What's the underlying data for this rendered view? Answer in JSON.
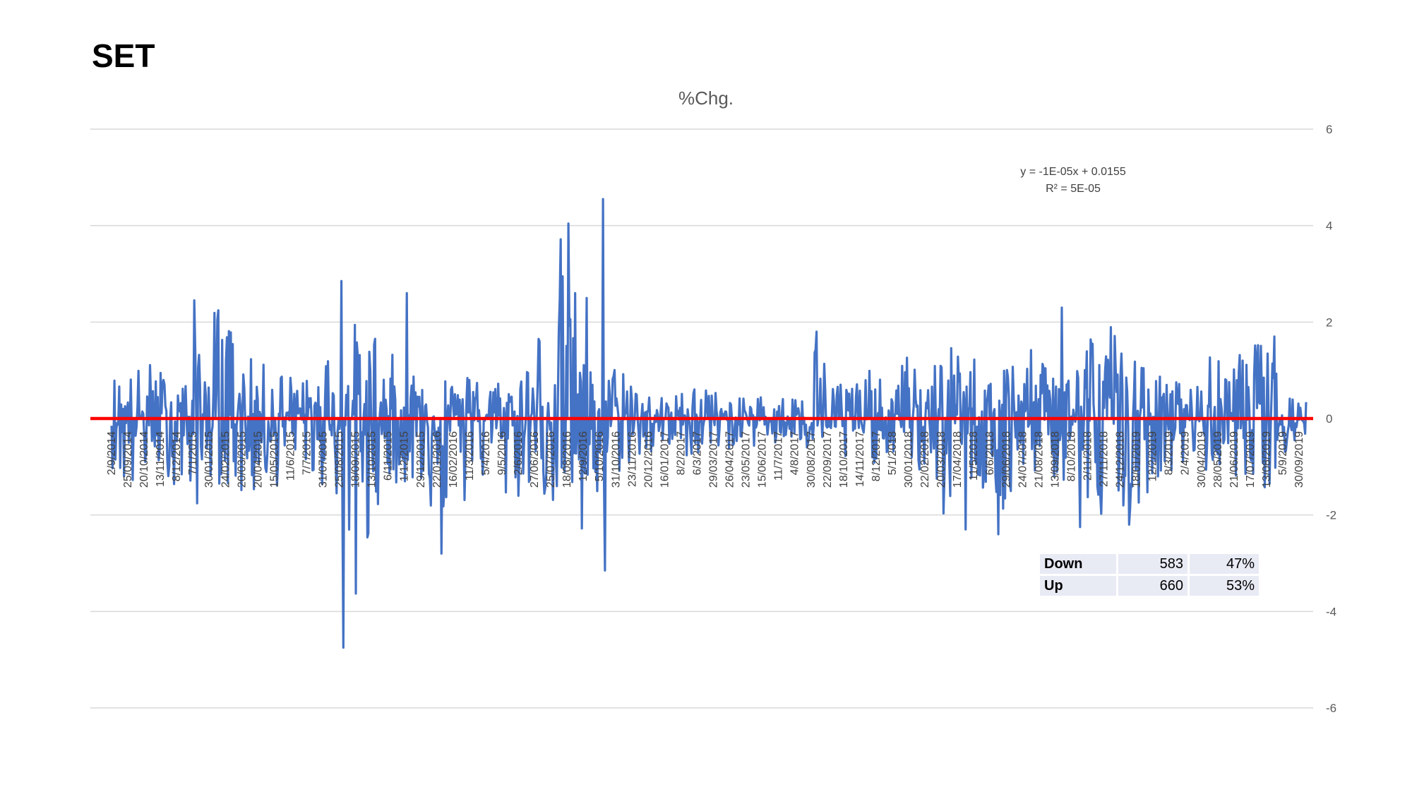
{
  "page": {
    "title": "SET"
  },
  "chart_data": {
    "type": "line",
    "title": "%Chg.",
    "ylim": [
      -6,
      6
    ],
    "yticks": [
      6,
      4,
      2,
      0,
      -2,
      -4,
      -6
    ],
    "y_axis_side": "right",
    "grid": true,
    "x_labels": [
      "2/9/2014",
      "25/09/2014",
      "20/10/2014",
      "13/11/2014",
      "8/12/2014",
      "7/1/2015",
      "30/01/2015",
      "24/02/2015",
      "20/03/2015",
      "20/04/2015",
      "15/05/2015",
      "11/6/2015",
      "7/7/2015",
      "31/07/2015",
      "25/08/2015",
      "18/09/2015",
      "13/10/2015",
      "6/11/2015",
      "1/12/2015",
      "29/12/2015",
      "22/01/2016",
      "16/02/2016",
      "11/3/2016",
      "5/4/2016",
      "9/5/2016",
      "2/6/2016",
      "27/06/2016",
      "25/07/2016",
      "18/08/2016",
      "12/9/2016",
      "5/10/2016",
      "31/10/2016",
      "23/11/2016",
      "20/12/2016",
      "16/01/2017",
      "8/2/2017",
      "6/3/2017",
      "29/03/2017",
      "26/04/2017",
      "23/05/2017",
      "15/06/2017",
      "11/7/2017",
      "4/8/2017",
      "30/08/2017",
      "22/09/2017",
      "18/10/2017",
      "14/11/2017",
      "8/12/2017",
      "5/1/2018",
      "30/01/2018",
      "22/02/2018",
      "20/03/2018",
      "17/04/2018",
      "11/5/2018",
      "6/6/2018",
      "29/06/2018",
      "24/07/2018",
      "21/08/2018",
      "13/09/2018",
      "8/10/2018",
      "2/11/2018",
      "27/11/2018",
      "24/12/2018",
      "18/01/2019",
      "12/2/2019",
      "8/3/2019",
      "2/4/2019",
      "30/04/2019",
      "28/05/2019",
      "21/06/2019",
      "17/07/2019",
      "13/08/2019",
      "5/9/2019",
      "30/09/2019"
    ],
    "series": [
      {
        "color": "#4472c4",
        "points_count": 1243,
        "profile": [
          0.95,
          1.0,
          1.2,
          0.95,
          0.8,
          2.45,
          2.4,
          1.3,
          1.15,
          1.1,
          0.8,
          0.9,
          2.6,
          1.9,
          1.95,
          1.2,
          1.3,
          1.05,
          0.85,
          1.0,
          0.9,
          0.8,
          1.5,
          2.5,
          4.55,
          1.1,
          0.9,
          1.35,
          0.6,
          0.45,
          0.55,
          1.05,
          0.5,
          0.4,
          0.55,
          0.45,
          0.5,
          1.8,
          0.95,
          0.8,
          1.05,
          0.6,
          1.4,
          1.0,
          1.45,
          1.6,
          1.1,
          1.2,
          1.45,
          1.4,
          1.1,
          2.3,
          1.9,
          1.9,
          1.2,
          1.0,
          0.8,
          0.8,
          1.35,
          1.1,
          1.7,
          1.4,
          0.5,
          0.5
        ],
        "profile_neg": [
          -1.0,
          -1.75,
          -1.0,
          -1.2,
          -2.4,
          -1.3,
          -1.4,
          -1.8,
          -1.5,
          -1.4,
          -1.2,
          -1.4,
          -1.8,
          -4.75,
          -1.8,
          -1.4,
          -1.4,
          -2.0,
          -2.8,
          -1.3,
          -1.5,
          -1.9,
          -1.5,
          -1.7,
          -2.3,
          -3.15,
          -1.7,
          -1.0,
          -0.9,
          -0.7,
          -0.8,
          -0.8,
          -0.7,
          -0.6,
          -0.6,
          -0.6,
          -0.5,
          -0.8,
          -0.9,
          -1.0,
          -1.0,
          -0.7,
          -1.0,
          -1.3,
          -2.3,
          -1.2,
          -1.6,
          -2.4,
          -1.6,
          -1.0,
          -1.4,
          -2.25,
          -2.1,
          -1.6,
          -2.2,
          -1.2,
          -1.2,
          -1.0,
          -1.2,
          -1.2,
          -1.2,
          -1.85,
          -0.8,
          -0.8
        ],
        "spikes": [
          {
            "date": "7/1/2015",
            "value": 2.45
          },
          {
            "date": "25/08/2015",
            "value": 2.85
          },
          {
            "date": "25/08/2015",
            "value": -4.75
          },
          {
            "date": "1/12/2015",
            "value": 2.6
          },
          {
            "date": "22/01/2016",
            "value": -2.8
          },
          {
            "date": "12/9/2016",
            "value": 2.5
          },
          {
            "date": "5/10/2016",
            "value": 4.55
          },
          {
            "date": "5/10/2016",
            "value": -3.15
          },
          {
            "date": "30/08/2017",
            "value": 1.8
          },
          {
            "date": "17/04/2018",
            "value": -2.3
          },
          {
            "date": "6/6/2018",
            "value": -2.4
          },
          {
            "date": "13/09/2018",
            "value": 2.3
          },
          {
            "date": "8/10/2018",
            "value": -2.25
          },
          {
            "date": "24/12/2018",
            "value": -2.2
          },
          {
            "date": "13/08/2019",
            "value": 1.7
          }
        ]
      }
    ],
    "zero_line": {
      "value": 0,
      "color": "#ff0000"
    },
    "trendline": {
      "equation": "y = -1E-05x + 0.0155",
      "r2": "R² = 5E-05"
    }
  },
  "stats": {
    "rows": [
      {
        "label": "Down",
        "count": "583",
        "pct": "47%"
      },
      {
        "label": "Up",
        "count": "660",
        "pct": "53%"
      }
    ]
  }
}
